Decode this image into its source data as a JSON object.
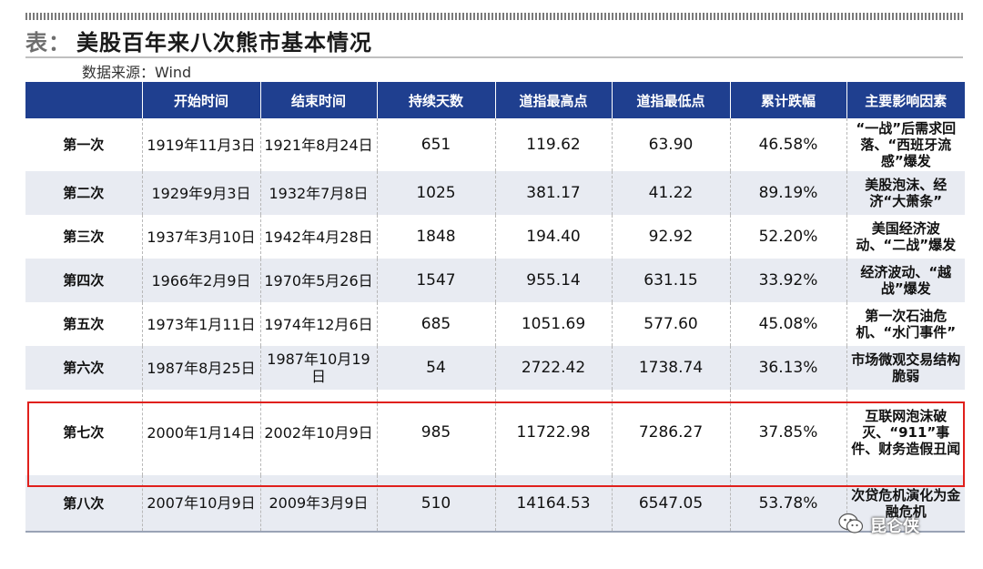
{
  "title": {
    "prefix": "表：",
    "text": "美股百年来八次熊市基本情况"
  },
  "source": "数据来源：Wind",
  "table": {
    "headers": [
      "",
      "开始时间",
      "结束时间",
      "持续天数",
      "道指最高点",
      "道指最低点",
      "累计跌幅",
      "主要影响因素"
    ],
    "rows": [
      {
        "name": "第一次",
        "start": "1919年11月3日",
        "end": "1921年8月24日",
        "days": "651",
        "high": "119.62",
        "low": "63.90",
        "drop": "46.58%",
        "reason": "“一战”后需求回落、“西班牙流感”爆发"
      },
      {
        "name": "第二次",
        "start": "1929年9月3日",
        "end": "1932年7月8日",
        "days": "1025",
        "high": "381.17",
        "low": "41.22",
        "drop": "89.19%",
        "reason": "美股泡沫、经济“大萧条”"
      },
      {
        "name": "第三次",
        "start": "1937年3月10日",
        "end": "1942年4月28日",
        "days": "1848",
        "high": "194.40",
        "low": "92.92",
        "drop": "52.20%",
        "reason": "美国经济波动、“二战”爆发"
      },
      {
        "name": "第四次",
        "start": "1966年2月9日",
        "end": "1970年5月26日",
        "days": "1547",
        "high": "955.14",
        "low": "631.15",
        "drop": "33.92%",
        "reason": "经济波动、“越战”爆发"
      },
      {
        "name": "第五次",
        "start": "1973年1月11日",
        "end": "1974年12月6日",
        "days": "685",
        "high": "1051.69",
        "low": "577.60",
        "drop": "45.08%",
        "reason": "第一次石油危机、“水门事件”"
      },
      {
        "name": "第六次",
        "start": "1987年8月25日",
        "end": "1987年10月19日",
        "days": "54",
        "high": "2722.42",
        "low": "1738.74",
        "drop": "36.13%",
        "reason": "市场微观交易结构脆弱"
      },
      {
        "name": "第七次",
        "start": "2000年1月14日",
        "end": "2002年10月9日",
        "days": "985",
        "high": "11722.98",
        "low": "7286.27",
        "drop": "37.85%",
        "reason": "互联网泡沫破灭、“911”事件、财务造假丑闻"
      },
      {
        "name": "第八次",
        "start": "2007年10月9日",
        "end": "2009年3月9日",
        "days": "510",
        "high": "14164.53",
        "low": "6547.05",
        "drop": "53.78%",
        "reason": "次贷危机演化为金融危机"
      }
    ]
  },
  "highlight_row": 7,
  "watermark": {
    "text": "昆仑侠",
    "icon": "wechat-icon"
  },
  "colors": {
    "header_bg": "#1f3f8f",
    "stripe_bg": "#e8ebf2",
    "highlight": "#e0201c"
  }
}
